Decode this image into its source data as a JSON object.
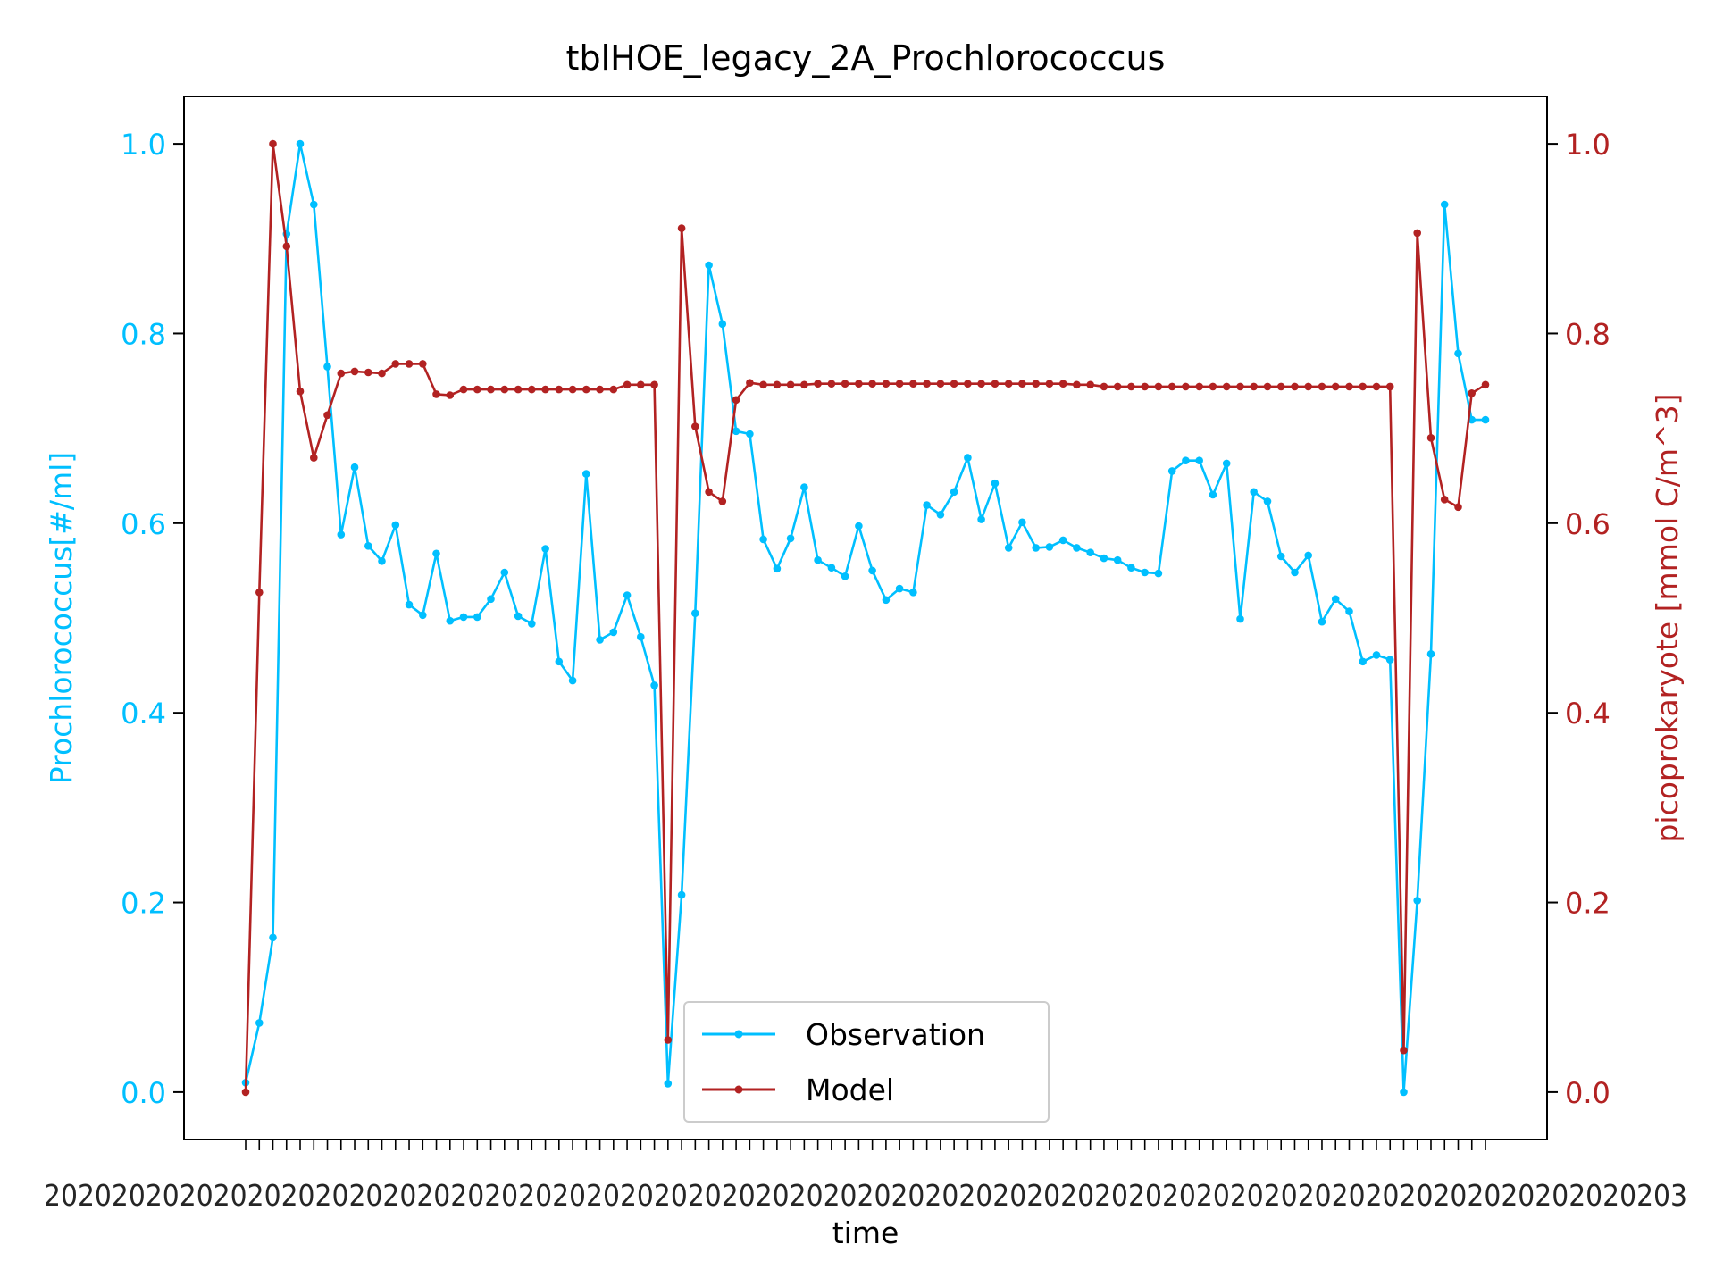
{
  "chart_data": {
    "type": "line",
    "title": "tblHOE_legacy_2A_Prochlorococcus",
    "xlabel": "time",
    "ylabel_left": "Prochlorococcus[#/ml]",
    "ylabel_right": "picoprokaryote [mmol C/m^3]",
    "ylim_left": [
      -0.05,
      1.05
    ],
    "ylim_right": [
      -0.05,
      1.05
    ],
    "yticks": [
      "0.0",
      "0.2",
      "0.4",
      "0.6",
      "0.8",
      "1.0"
    ],
    "x_tick_labels_note": "overlapping, illegible date labels",
    "legend_position": "lower center",
    "grid": false,
    "colors": {
      "observation": "#00bfff",
      "model": "#b22222",
      "axis": "#000000"
    },
    "series": [
      {
        "name": "Observation",
        "axis": "left",
        "values": [
          0.01,
          0.073,
          0.163,
          0.905,
          1.0,
          0.936,
          0.765,
          0.588,
          0.659,
          0.576,
          0.56,
          0.598,
          0.514,
          0.503,
          0.568,
          0.497,
          0.501,
          0.501,
          0.52,
          0.548,
          0.502,
          0.494,
          0.573,
          0.454,
          0.434,
          0.652,
          0.477,
          0.485,
          0.524,
          0.48,
          0.429,
          0.009,
          0.208,
          0.505,
          0.872,
          0.81,
          0.697,
          0.694,
          0.583,
          0.552,
          0.584,
          0.638,
          0.561,
          0.553,
          0.544,
          0.597,
          0.55,
          0.519,
          0.531,
          0.527,
          0.619,
          0.609,
          0.633,
          0.669,
          0.604,
          0.642,
          0.574,
          0.601,
          0.574,
          0.575,
          0.582,
          0.574,
          0.569,
          0.563,
          0.561,
          0.553,
          0.548,
          0.547,
          0.655,
          0.666,
          0.666,
          0.63,
          0.663,
          0.499,
          0.633,
          0.623,
          0.565,
          0.548,
          0.566,
          0.496,
          0.52,
          0.507,
          0.454,
          0.461,
          0.456,
          0.0,
          0.202,
          0.462,
          0.936,
          0.779,
          0.709,
          0.709
        ]
      },
      {
        "name": "Model",
        "axis": "right",
        "values": [
          0.0,
          0.527,
          1.0,
          0.892,
          0.739,
          0.669,
          0.714,
          0.758,
          0.76,
          0.759,
          0.758,
          0.768,
          0.768,
          0.768,
          0.736,
          0.735,
          0.741,
          0.741,
          0.741,
          0.741,
          0.741,
          0.741,
          0.741,
          0.741,
          0.741,
          0.741,
          0.741,
          0.741,
          0.746,
          0.746,
          0.746,
          0.055,
          0.911,
          0.702,
          0.633,
          0.623,
          0.73,
          0.748,
          0.746,
          0.746,
          0.746,
          0.746,
          0.747,
          0.747,
          0.747,
          0.747,
          0.747,
          0.747,
          0.747,
          0.747,
          0.747,
          0.747,
          0.747,
          0.747,
          0.747,
          0.747,
          0.747,
          0.747,
          0.747,
          0.747,
          0.747,
          0.746,
          0.746,
          0.744,
          0.744,
          0.744,
          0.744,
          0.744,
          0.744,
          0.744,
          0.744,
          0.744,
          0.744,
          0.744,
          0.744,
          0.744,
          0.744,
          0.744,
          0.744,
          0.744,
          0.744,
          0.744,
          0.744,
          0.744,
          0.744,
          0.044,
          0.906,
          0.69,
          0.625,
          0.617,
          0.737,
          0.746
        ]
      }
    ]
  }
}
